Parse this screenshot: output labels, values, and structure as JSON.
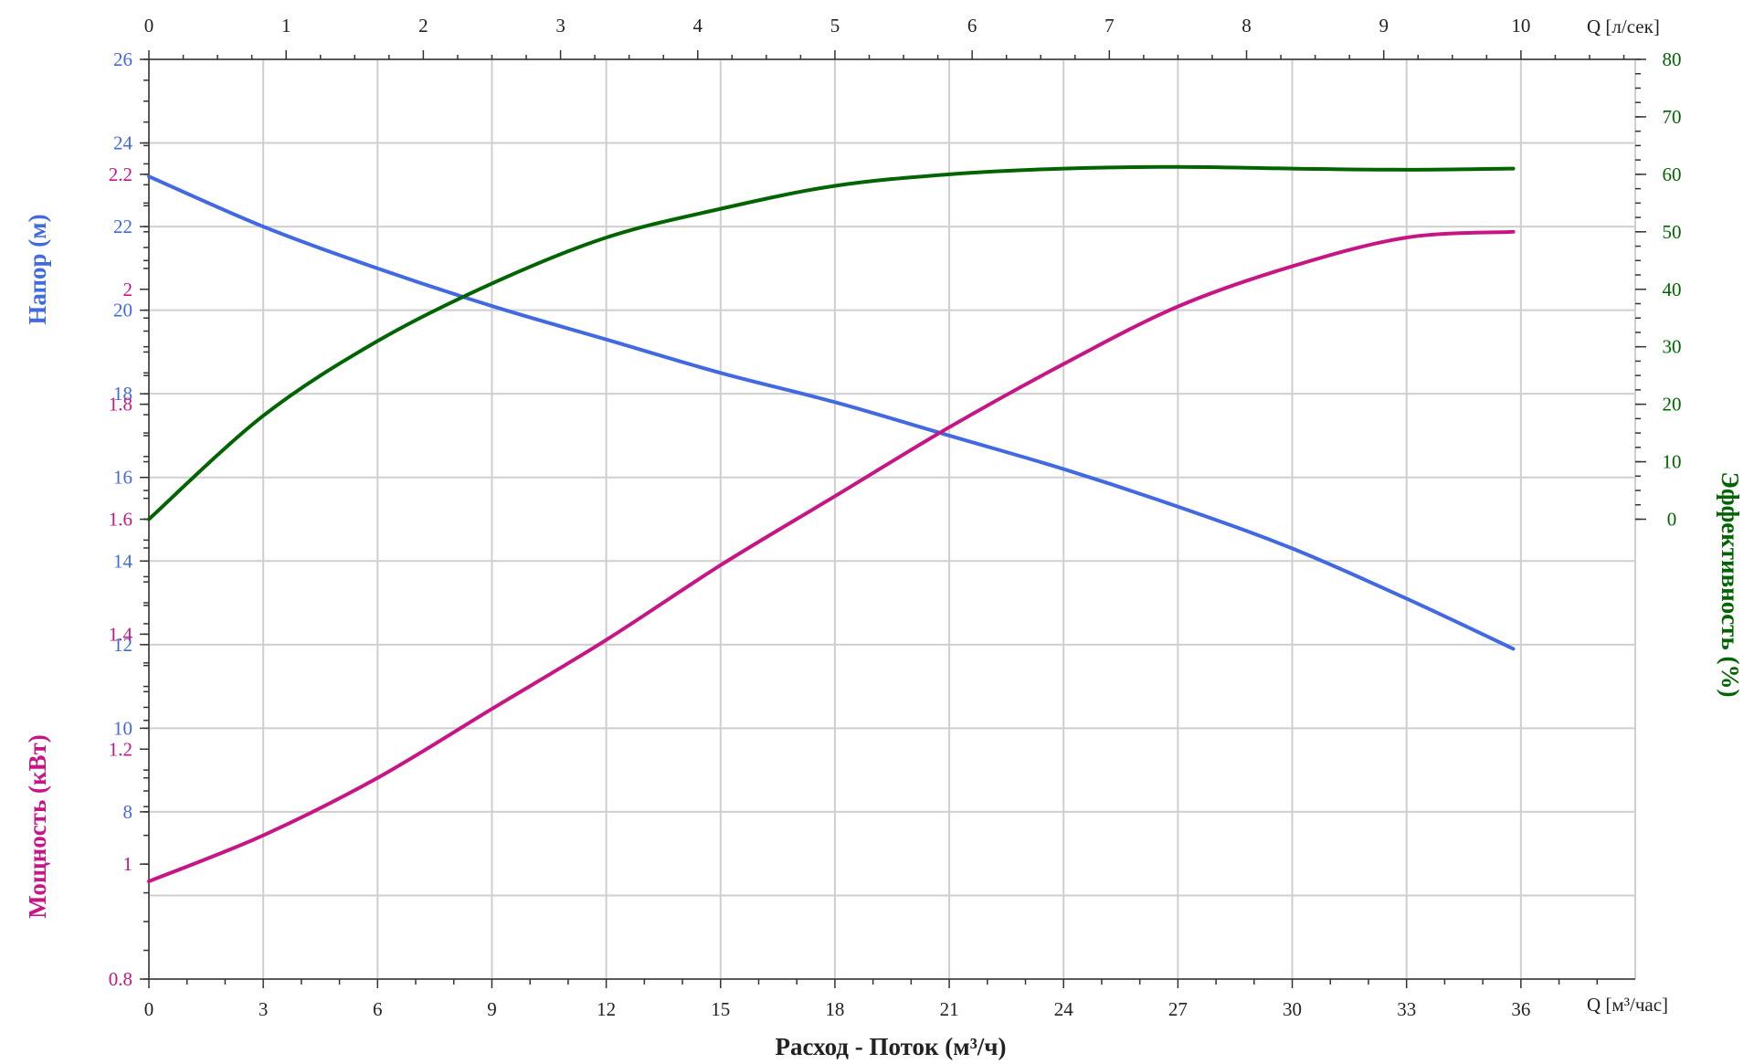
{
  "chart_data": {
    "type": "line",
    "xlabel": "Расход - Поток (м³/ч)",
    "x_units_bottom": "Q [м³/час]",
    "x_units_top": "Q [л/сек]",
    "x_bottom": {
      "ticks": [
        0,
        3,
        6,
        9,
        12,
        15,
        18,
        21,
        24,
        27,
        30,
        33,
        36
      ],
      "range": [
        0,
        39
      ]
    },
    "x_top": {
      "ticks": [
        0,
        1,
        2,
        3,
        4,
        5,
        6,
        7,
        8,
        9,
        10
      ],
      "range": [
        0,
        10.833
      ]
    },
    "axes": {
      "head": {
        "label": "Напор (м)",
        "color": "#4169e1",
        "ticks": [
          "8",
          "10",
          "12",
          "14",
          "16",
          "18",
          "20",
          "22",
          "24",
          "26"
        ],
        "range": [
          4,
          26
        ],
        "side": "left-top"
      },
      "power": {
        "label": "Мощность (кВт)",
        "color": "#c71585",
        "ticks": [
          "0.8",
          "1",
          "1.2",
          "1.4",
          "1.6",
          "1.8",
          "2",
          "2.2"
        ],
        "range": [
          0.8,
          2.4
        ],
        "side": "left-bottom"
      },
      "efficiency": {
        "label": "Эффективность (%)",
        "color": "#006400",
        "ticks": [
          "0",
          "10",
          "20",
          "30",
          "40",
          "50",
          "60",
          "70",
          "80"
        ],
        "range": [
          -80,
          80
        ],
        "side": "right"
      }
    },
    "series": [
      {
        "axis": "head",
        "color": "#4169e1",
        "x": [
          0,
          3,
          6,
          9,
          12,
          15,
          18,
          21,
          24,
          27,
          30,
          33,
          35.8
        ],
        "y": [
          23.2,
          22.0,
          21.0,
          20.1,
          19.3,
          18.5,
          17.8,
          17.0,
          16.2,
          15.3,
          14.3,
          13.1,
          11.9
        ]
      },
      {
        "axis": "efficiency",
        "color": "#006400",
        "x": [
          0,
          3,
          6,
          9,
          12,
          15,
          18,
          21,
          24,
          27,
          30,
          33,
          35.8
        ],
        "y": [
          0,
          18,
          31,
          41,
          49,
          54,
          58,
          60,
          61,
          61.3,
          61,
          60.8,
          61
        ]
      },
      {
        "axis": "power",
        "color": "#c71585",
        "x": [
          0,
          3,
          6,
          9,
          12,
          15,
          18,
          21,
          24,
          27,
          30,
          33,
          35.8
        ],
        "y": [
          0.97,
          1.05,
          1.15,
          1.27,
          1.39,
          1.52,
          1.64,
          1.76,
          1.87,
          1.97,
          2.04,
          2.09,
          2.1
        ]
      }
    ],
    "grid": true
  }
}
